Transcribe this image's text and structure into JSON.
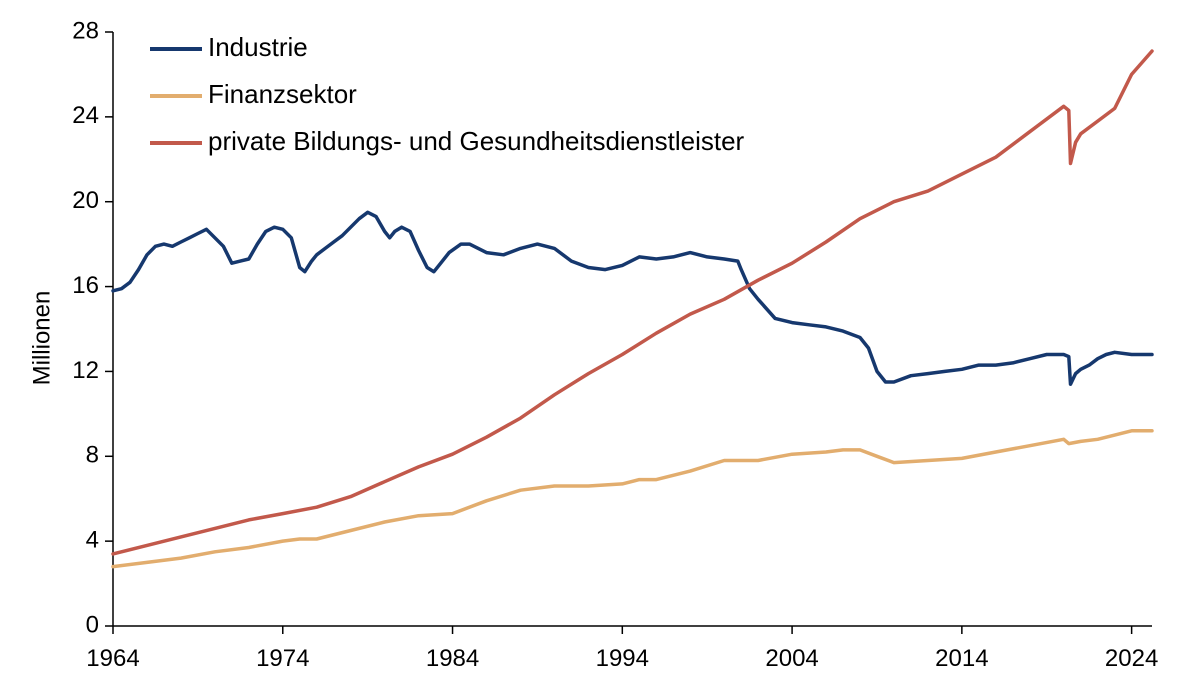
{
  "chart_data": {
    "type": "line",
    "ylabel": "Millionen",
    "xlabel": "",
    "ylim": [
      0,
      28
    ],
    "xlim": [
      1964,
      2025.2
    ],
    "yticks": [
      0,
      4,
      8,
      12,
      16,
      20,
      24,
      28
    ],
    "xticks": [
      1964,
      1974,
      1984,
      1994,
      2004,
      2014,
      2024
    ],
    "ytick_labels": [
      "0",
      "4",
      "8",
      "12",
      "16",
      "20",
      "24",
      "28"
    ],
    "xtick_labels": [
      "1964",
      "1974",
      "1984",
      "1994",
      "2004",
      "2014",
      "2024"
    ],
    "grid": false,
    "legend_position": "top-left",
    "series": [
      {
        "name": "Industrie",
        "color": "#16386e",
        "x": [
          1964,
          1964.5,
          1965,
          1965.5,
          1966,
          1966.5,
          1967,
          1967.5,
          1968,
          1968.5,
          1969,
          1969.5,
          1970,
          1970.5,
          1971,
          1971.5,
          1972,
          1972.5,
          1973,
          1973.5,
          1974,
          1974.5,
          1975,
          1975.3,
          1975.7,
          1976,
          1976.5,
          1977,
          1977.5,
          1978,
          1978.5,
          1979,
          1979.5,
          1980,
          1980.3,
          1980.6,
          1981,
          1981.5,
          1982,
          1982.5,
          1982.9,
          1983.3,
          1983.8,
          1984.5,
          1985,
          1986,
          1987,
          1988,
          1989,
          1990,
          1991,
          1992,
          1993,
          1994,
          1995,
          1996,
          1997,
          1998,
          1999,
          2000,
          2000.8,
          2001,
          2001.5,
          2002,
          2003,
          2004,
          2005,
          2006,
          2007,
          2008,
          2008.5,
          2009,
          2009.5,
          2010,
          2011,
          2012,
          2013,
          2014,
          2015,
          2016,
          2017,
          2018,
          2019,
          2020,
          2020.3,
          2020.4,
          2020.7,
          2021,
          2021.5,
          2022,
          2022.5,
          2023,
          2024,
          2025.2
        ],
        "y": [
          15.8,
          15.9,
          16.2,
          16.8,
          17.5,
          17.9,
          18.0,
          17.9,
          18.1,
          18.3,
          18.5,
          18.7,
          18.3,
          17.9,
          17.1,
          17.2,
          17.3,
          18.0,
          18.6,
          18.8,
          18.7,
          18.3,
          16.9,
          16.7,
          17.2,
          17.5,
          17.8,
          18.1,
          18.4,
          18.8,
          19.2,
          19.5,
          19.3,
          18.6,
          18.3,
          18.6,
          18.8,
          18.6,
          17.7,
          16.9,
          16.7,
          17.1,
          17.6,
          18.0,
          18.0,
          17.6,
          17.5,
          17.8,
          18.0,
          17.8,
          17.2,
          16.9,
          16.8,
          17.0,
          17.4,
          17.3,
          17.4,
          17.6,
          17.4,
          17.3,
          17.2,
          16.8,
          15.9,
          15.4,
          14.5,
          14.3,
          14.2,
          14.1,
          13.9,
          13.6,
          13.1,
          12.0,
          11.5,
          11.5,
          11.8,
          11.9,
          12.0,
          12.1,
          12.3,
          12.3,
          12.4,
          12.6,
          12.8,
          12.8,
          12.7,
          11.4,
          11.9,
          12.1,
          12.3,
          12.6,
          12.8,
          12.9,
          12.8,
          12.8
        ]
      },
      {
        "name": "Finanzsektor",
        "color": "#e2ad6e",
        "x": [
          1964,
          1966,
          1968,
          1970,
          1972,
          1974,
          1975,
          1976,
          1978,
          1980,
          1982,
          1984,
          1986,
          1988,
          1990,
          1992,
          1994,
          1995,
          1996,
          1998,
          2000,
          2002,
          2004,
          2006,
          2007,
          2008,
          2009,
          2010,
          2012,
          2014,
          2016,
          2018,
          2020,
          2020.3,
          2021,
          2022,
          2023,
          2024,
          2025.2
        ],
        "y": [
          2.8,
          3.0,
          3.2,
          3.5,
          3.7,
          4.0,
          4.1,
          4.1,
          4.5,
          4.9,
          5.2,
          5.3,
          5.9,
          6.4,
          6.6,
          6.6,
          6.7,
          6.9,
          6.9,
          7.3,
          7.8,
          7.8,
          8.1,
          8.2,
          8.3,
          8.3,
          8.0,
          7.7,
          7.8,
          7.9,
          8.2,
          8.5,
          8.8,
          8.6,
          8.7,
          8.8,
          9.0,
          9.2,
          9.2
        ]
      },
      {
        "name": "private Bildungs- und Gesundheitsdienstleister",
        "color": "#c2594b",
        "x": [
          1964,
          1966,
          1968,
          1970,
          1972,
          1974,
          1976,
          1978,
          1980,
          1982,
          1984,
          1986,
          1988,
          1990,
          1992,
          1994,
          1996,
          1998,
          2000,
          2002,
          2004,
          2006,
          2008,
          2010,
          2012,
          2014,
          2016,
          2018,
          2020,
          2020.3,
          2020.4,
          2020.7,
          2021,
          2022,
          2023,
          2024,
          2025.2
        ],
        "y": [
          3.4,
          3.8,
          4.2,
          4.6,
          5.0,
          5.3,
          5.6,
          6.1,
          6.8,
          7.5,
          8.1,
          8.9,
          9.8,
          10.9,
          11.9,
          12.8,
          13.8,
          14.7,
          15.4,
          16.3,
          17.1,
          18.1,
          19.2,
          20.0,
          20.5,
          21.3,
          22.1,
          23.3,
          24.5,
          24.3,
          21.8,
          22.8,
          23.2,
          23.8,
          24.4,
          26.0,
          27.1
        ]
      }
    ]
  }
}
